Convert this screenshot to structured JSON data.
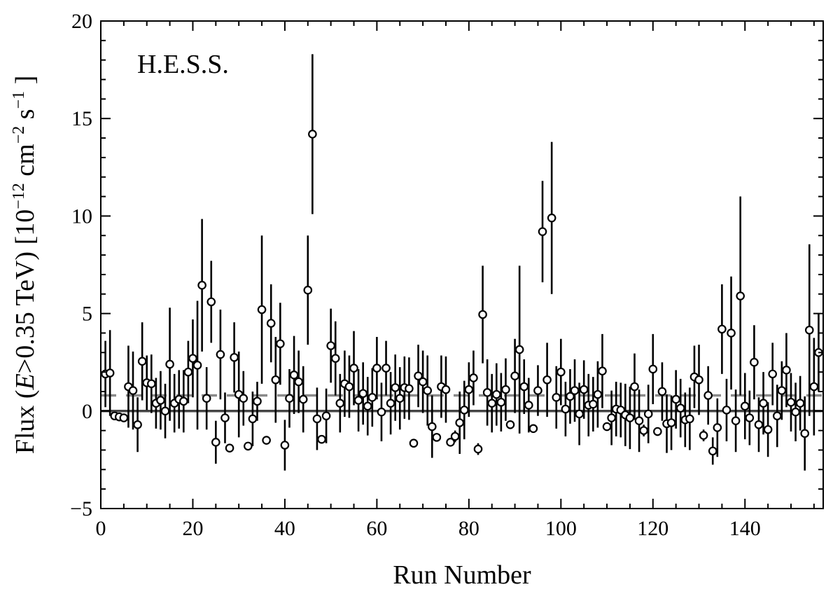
{
  "chart_data": {
    "type": "scatter",
    "annotation": "H.E.S.S.",
    "xlabel": "Run Number",
    "ylabel": {
      "prefix": "Flux (",
      "italic_var": "E",
      "middle": ">0.35 TeV) [10",
      "exp1": "−12",
      "mid2": " cm",
      "exp2": "−2",
      "mid3": " s",
      "exp3": "−1",
      "suffix": " ]"
    },
    "xlim": [
      0,
      157
    ],
    "ylim": [
      -5,
      20
    ],
    "x_ticks": [
      0,
      20,
      40,
      60,
      80,
      100,
      120,
      140
    ],
    "x_tick_labels": [
      "0",
      "20",
      "40",
      "60",
      "80",
      "100",
      "120",
      "140"
    ],
    "y_ticks": [
      -5,
      0,
      5,
      10,
      15,
      20
    ],
    "y_tick_labels": [
      "−5",
      "0",
      "5",
      "10",
      "15",
      "20"
    ],
    "reference_lines": [
      {
        "y": 0,
        "style": "solid",
        "color": "#444444"
      },
      {
        "y": 0.8,
        "style": "dashed",
        "color": "#8a8a8a"
      }
    ],
    "series": [
      {
        "points": [
          {
            "x": 1,
            "y": 1.9,
            "err": 1.7
          },
          {
            "x": 2,
            "y": 1.95,
            "err": 2.2
          },
          {
            "x": 3,
            "y": -0.25,
            "err": 0.2
          },
          {
            "x": 4,
            "y": -0.3,
            "err": 0.2
          },
          {
            "x": 5,
            "y": -0.35,
            "err": 0.2
          },
          {
            "x": 6,
            "y": 1.25,
            "err": 2.1
          },
          {
            "x": 7,
            "y": 1.05,
            "err": 2.0
          },
          {
            "x": 8,
            "y": -0.7,
            "err": 1.4
          },
          {
            "x": 9,
            "y": 2.55,
            "err": 2.0
          },
          {
            "x": 10,
            "y": 1.45,
            "err": 1.4
          },
          {
            "x": 11,
            "y": 1.4,
            "err": 1.5
          },
          {
            "x": 12,
            "y": 0.4,
            "err": 1.3
          },
          {
            "x": 13,
            "y": 0.55,
            "err": 1.5
          },
          {
            "x": 14,
            "y": 0.0,
            "err": 1.4
          },
          {
            "x": 15,
            "y": 2.4,
            "err": 2.9
          },
          {
            "x": 16,
            "y": 0.4,
            "err": 1.5
          },
          {
            "x": 17,
            "y": 0.6,
            "err": 1.5
          },
          {
            "x": 18,
            "y": 0.5,
            "err": 1.6
          },
          {
            "x": 19,
            "y": 2.0,
            "err": 1.6
          },
          {
            "x": 20,
            "y": 2.7,
            "err": 2.0
          },
          {
            "x": 21,
            "y": 2.35,
            "err": 3.3
          },
          {
            "x": 22,
            "y": 6.45,
            "err": 3.4
          },
          {
            "x": 23,
            "y": 0.65,
            "err": 1.6
          },
          {
            "x": 24,
            "y": 5.6,
            "err": 2.1
          },
          {
            "x": 25,
            "y": -1.6,
            "err": 1.1
          },
          {
            "x": 26,
            "y": 2.9,
            "err": 2.3
          },
          {
            "x": 27,
            "y": -0.35,
            "err": 1.3
          },
          {
            "x": 28,
            "y": -1.9,
            "err": 0.2
          },
          {
            "x": 29,
            "y": 2.75,
            "err": 1.8
          },
          {
            "x": 30,
            "y": 0.85,
            "err": 2.2
          },
          {
            "x": 31,
            "y": 0.65,
            "err": 1.4
          },
          {
            "x": 32,
            "y": -1.8,
            "err": 0.2
          },
          {
            "x": 33,
            "y": -0.4,
            "err": 1.4
          },
          {
            "x": 34,
            "y": 0.5,
            "err": 1.0
          },
          {
            "x": 35,
            "y": 5.2,
            "err": 3.8
          },
          {
            "x": 36,
            "y": -1.5,
            "err": 0.2
          },
          {
            "x": 37,
            "y": 4.5,
            "err": 2.0
          },
          {
            "x": 38,
            "y": 1.6,
            "err": 2.2
          },
          {
            "x": 39,
            "y": 3.45,
            "err": 2.1
          },
          {
            "x": 40,
            "y": -1.75,
            "err": 1.3
          },
          {
            "x": 41,
            "y": 0.65,
            "err": 1.5
          },
          {
            "x": 42,
            "y": 1.85,
            "err": 2.0
          },
          {
            "x": 43,
            "y": 1.5,
            "err": 1.6
          },
          {
            "x": 44,
            "y": 0.6,
            "err": 1.7
          },
          {
            "x": 45,
            "y": 6.2,
            "err": 2.8
          },
          {
            "x": 46,
            "y": 14.2,
            "err": 4.1
          },
          {
            "x": 47,
            "y": -0.4,
            "err": 1.6
          },
          {
            "x": 48,
            "y": -1.45,
            "err": 0.2
          },
          {
            "x": 49,
            "y": -0.25,
            "err": 1.4
          },
          {
            "x": 50,
            "y": 3.35,
            "err": 1.9
          },
          {
            "x": 51,
            "y": 2.7,
            "err": 1.9
          },
          {
            "x": 52,
            "y": 0.4,
            "err": 1.5
          },
          {
            "x": 53,
            "y": 1.4,
            "err": 1.7
          },
          {
            "x": 54,
            "y": 1.25,
            "err": 1.6
          },
          {
            "x": 55,
            "y": 2.2,
            "err": 1.9
          },
          {
            "x": 56,
            "y": 0.55,
            "err": 1.6
          },
          {
            "x": 57,
            "y": 0.9,
            "err": 1.6
          },
          {
            "x": 58,
            "y": 0.25,
            "err": 1.5
          },
          {
            "x": 59,
            "y": 0.7,
            "err": 1.5
          },
          {
            "x": 60,
            "y": 2.2,
            "err": 1.6
          },
          {
            "x": 61,
            "y": -0.05,
            "err": 1.5
          },
          {
            "x": 62,
            "y": 2.2,
            "err": 1.4
          },
          {
            "x": 63,
            "y": 0.4,
            "err": 1.6
          },
          {
            "x": 64,
            "y": 1.2,
            "err": 1.7
          },
          {
            "x": 65,
            "y": 0.65,
            "err": 1.6
          },
          {
            "x": 66,
            "y": 1.2,
            "err": 1.6
          },
          {
            "x": 67,
            "y": 1.15,
            "err": 1.6
          },
          {
            "x": 68,
            "y": -1.65,
            "err": 0.2
          },
          {
            "x": 69,
            "y": 1.8,
            "err": 1.6
          },
          {
            "x": 70,
            "y": 1.5,
            "err": 1.6
          },
          {
            "x": 71,
            "y": 1.05,
            "err": 1.8
          },
          {
            "x": 72,
            "y": -0.8,
            "err": 1.6
          },
          {
            "x": 73,
            "y": -1.35,
            "err": 0.2
          },
          {
            "x": 74,
            "y": 1.25,
            "err": 1.6
          },
          {
            "x": 75,
            "y": 1.1,
            "err": 1.7
          },
          {
            "x": 76,
            "y": -1.6,
            "err": 0.2
          },
          {
            "x": 77,
            "y": -1.3,
            "err": 0.3
          },
          {
            "x": 78,
            "y": -0.6,
            "err": 1.6
          },
          {
            "x": 79,
            "y": 0.05,
            "err": 1.5
          },
          {
            "x": 80,
            "y": 1.1,
            "err": 1.4
          },
          {
            "x": 81,
            "y": 1.7,
            "err": 1.4
          },
          {
            "x": 82,
            "y": -1.95,
            "err": 0.3
          },
          {
            "x": 83,
            "y": 4.95,
            "err": 2.5
          },
          {
            "x": 84,
            "y": 0.95,
            "err": 1.7
          },
          {
            "x": 85,
            "y": 0.4,
            "err": 1.5
          },
          {
            "x": 86,
            "y": 0.85,
            "err": 1.6
          },
          {
            "x": 87,
            "y": 0.45,
            "err": 1.5
          },
          {
            "x": 88,
            "y": 1.1,
            "err": 1.6
          },
          {
            "x": 89,
            "y": -0.7,
            "err": 0.2
          },
          {
            "x": 90,
            "y": 1.8,
            "err": 1.9
          },
          {
            "x": 91,
            "y": 3.15,
            "err": 4.3
          },
          {
            "x": 92,
            "y": 1.25,
            "err": 1.4
          },
          {
            "x": 93,
            "y": 0.3,
            "err": 1.4
          },
          {
            "x": 94,
            "y": -0.9,
            "err": 0.2
          },
          {
            "x": 95,
            "y": 1.05,
            "err": 1.3
          },
          {
            "x": 96,
            "y": 9.2,
            "err": 2.6
          },
          {
            "x": 97,
            "y": 1.6,
            "err": 1.9
          },
          {
            "x": 98,
            "y": 9.9,
            "err": 3.9
          },
          {
            "x": 99,
            "y": 0.7,
            "err": 1.6
          },
          {
            "x": 100,
            "y": 2.0,
            "err": 1.7
          },
          {
            "x": 101,
            "y": 0.1,
            "err": 1.4
          },
          {
            "x": 102,
            "y": 0.75,
            "err": 1.4
          },
          {
            "x": 103,
            "y": 1.05,
            "err": 1.6
          },
          {
            "x": 104,
            "y": -0.15,
            "err": 1.6
          },
          {
            "x": 105,
            "y": 1.1,
            "err": 1.5
          },
          {
            "x": 106,
            "y": 0.3,
            "err": 1.6
          },
          {
            "x": 107,
            "y": 0.35,
            "err": 1.4
          },
          {
            "x": 108,
            "y": 0.85,
            "err": 1.7
          },
          {
            "x": 109,
            "y": 2.05,
            "err": 1.9
          },
          {
            "x": 110,
            "y": -0.8,
            "err": 0.2
          },
          {
            "x": 111,
            "y": -0.35,
            "err": 1.4
          },
          {
            "x": 112,
            "y": 0.1,
            "err": 1.4
          },
          {
            "x": 113,
            "y": 0.05,
            "err": 1.4
          },
          {
            "x": 114,
            "y": -0.2,
            "err": 1.6
          },
          {
            "x": 115,
            "y": -0.35,
            "err": 1.6
          },
          {
            "x": 116,
            "y": 1.25,
            "err": 1.7
          },
          {
            "x": 117,
            "y": -0.5,
            "err": 1.6
          },
          {
            "x": 118,
            "y": -1.0,
            "err": 0.3
          },
          {
            "x": 119,
            "y": -0.15,
            "err": 1.5
          },
          {
            "x": 120,
            "y": 2.15,
            "err": 1.8
          },
          {
            "x": 121,
            "y": -1.05,
            "err": 0.2
          },
          {
            "x": 122,
            "y": 1.0,
            "err": 1.5
          },
          {
            "x": 123,
            "y": -0.65,
            "err": 1.5
          },
          {
            "x": 124,
            "y": -0.6,
            "err": 1.4
          },
          {
            "x": 125,
            "y": 0.6,
            "err": 1.5
          },
          {
            "x": 126,
            "y": 0.15,
            "err": 1.5
          },
          {
            "x": 127,
            "y": -0.45,
            "err": 1.4
          },
          {
            "x": 128,
            "y": -0.4,
            "err": 1.6
          },
          {
            "x": 129,
            "y": 1.75,
            "err": 1.6
          },
          {
            "x": 130,
            "y": 1.6,
            "err": 1.8
          },
          {
            "x": 131,
            "y": -1.25,
            "err": 0.3
          },
          {
            "x": 132,
            "y": 0.8,
            "err": 1.5
          },
          {
            "x": 133,
            "y": -2.05,
            "err": 0.7
          },
          {
            "x": 134,
            "y": -0.85,
            "err": 1.5
          },
          {
            "x": 135,
            "y": 4.2,
            "err": 2.3
          },
          {
            "x": 136,
            "y": 0.05,
            "err": 1.6
          },
          {
            "x": 137,
            "y": 4.0,
            "err": 2.9
          },
          {
            "x": 138,
            "y": -0.5,
            "err": 1.6
          },
          {
            "x": 139,
            "y": 5.9,
            "err": 5.1
          },
          {
            "x": 140,
            "y": 0.25,
            "err": 1.7
          },
          {
            "x": 141,
            "y": -0.35,
            "err": 1.4
          },
          {
            "x": 142,
            "y": 2.5,
            "err": 1.9
          },
          {
            "x": 143,
            "y": -0.7,
            "err": 1.4
          },
          {
            "x": 144,
            "y": 0.4,
            "err": 1.6
          },
          {
            "x": 145,
            "y": -0.95,
            "err": 1.4
          },
          {
            "x": 146,
            "y": 1.9,
            "err": 1.6
          },
          {
            "x": 147,
            "y": -0.25,
            "err": 1.6
          },
          {
            "x": 148,
            "y": 1.05,
            "err": 1.5
          },
          {
            "x": 149,
            "y": 2.1,
            "err": 1.9
          },
          {
            "x": 150,
            "y": 0.45,
            "err": 1.5
          },
          {
            "x": 151,
            "y": -0.05,
            "err": 1.5
          },
          {
            "x": 152,
            "y": 0.4,
            "err": 1.4
          },
          {
            "x": 153,
            "y": -1.15,
            "err": 1.9
          },
          {
            "x": 154,
            "y": 4.15,
            "err": 4.4
          },
          {
            "x": 155,
            "y": 1.25,
            "err": 2.5
          },
          {
            "x": 156,
            "y": 3.0,
            "err": 2.0
          }
        ]
      }
    ]
  }
}
